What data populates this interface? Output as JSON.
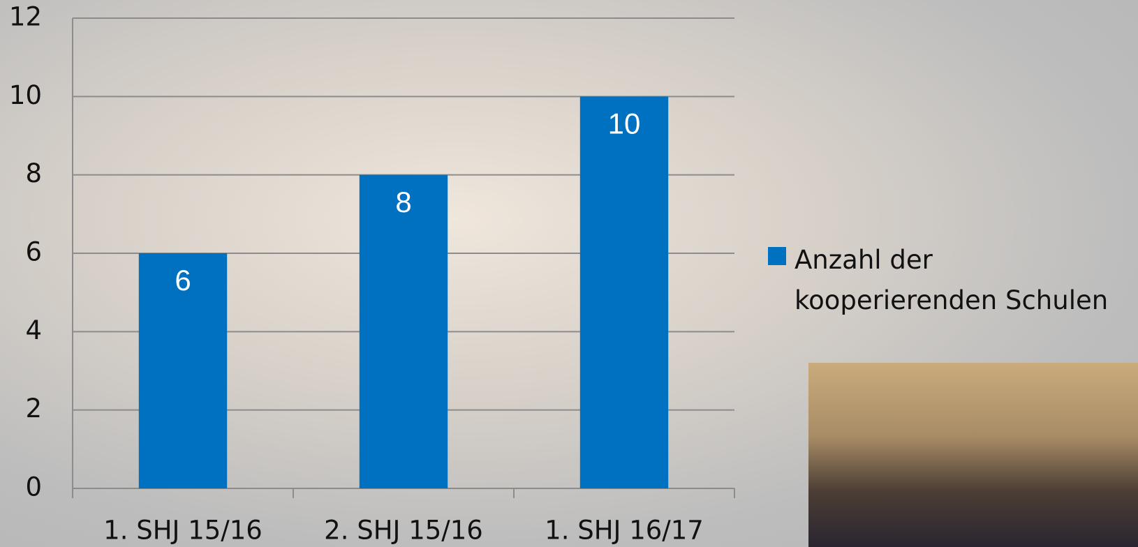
{
  "chart_data": {
    "type": "bar",
    "categories": [
      "1. SHJ 15/16",
      "2. SHJ 15/16",
      "1. SHJ 16/17"
    ],
    "series": [
      {
        "name": "Anzahl der kooperierenden Schulen",
        "color": "#0070c0",
        "values": [
          6,
          8,
          10
        ]
      }
    ],
    "ylim": [
      0,
      12
    ],
    "yticks": [
      0,
      2,
      4,
      6,
      8,
      10,
      12
    ],
    "grid": true,
    "data_labels": true,
    "legend": "right"
  }
}
